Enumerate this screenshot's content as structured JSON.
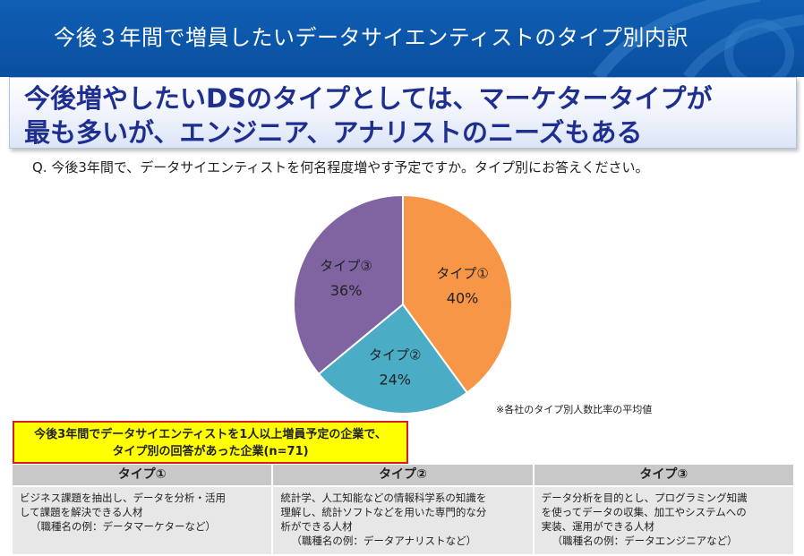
{
  "header": {
    "title": "今後３年間で増員したいデータサイエンティストのタイプ別内訳"
  },
  "headline": {
    "line1": "今後増やしたいDSのタイプとしては、マーケタータイプが",
    "line2": "最も多いが、エンジニア、アナリストのニーズもある"
  },
  "question": "Q. 今後3年間で、データサイエンティストを何名程度増やす予定ですか。タイプ別にお答えください。",
  "chart_data": {
    "type": "pie",
    "slices": [
      {
        "label": "タイプ①",
        "value": 40,
        "value_label": "40%",
        "color": "#f79646"
      },
      {
        "label": "タイプ②",
        "value": 24,
        "value_label": "24%",
        "color": "#4bacc6"
      },
      {
        "label": "タイプ③",
        "value": 36,
        "value_label": "36%",
        "color": "#8064a2"
      }
    ]
  },
  "note": "※各社のタイプ別人数比率の平均値",
  "condition_box": {
    "line1": "今後3年間でデータサイエンティストを1人以上増員予定の企業で、",
    "line2": "タイプ別の回答があった企業(n=71)"
  },
  "types": [
    {
      "header": "タイプ①",
      "lines": [
        "ビジネス課題を抽出し、データを分析・活用",
        "して課題を解決できる人材"
      ],
      "example": "（職種名の例：データマーケターなど）"
    },
    {
      "header": "タイプ②",
      "lines": [
        "統計学、人工知能などの情報科学系の知識を",
        "理解し、統計ソフトなどを用いた専門的な分",
        "析ができる人材"
      ],
      "example": "（職種名の例：データアナリストなど）"
    },
    {
      "header": "タイプ③",
      "lines": [
        "データ分析を目的とし、プログラミング知識",
        "を使ってデータの収集、加工やシステムへの",
        "実装、運用ができる人材"
      ],
      "example": "（職種名の例：データエンジニアなど）"
    }
  ]
}
